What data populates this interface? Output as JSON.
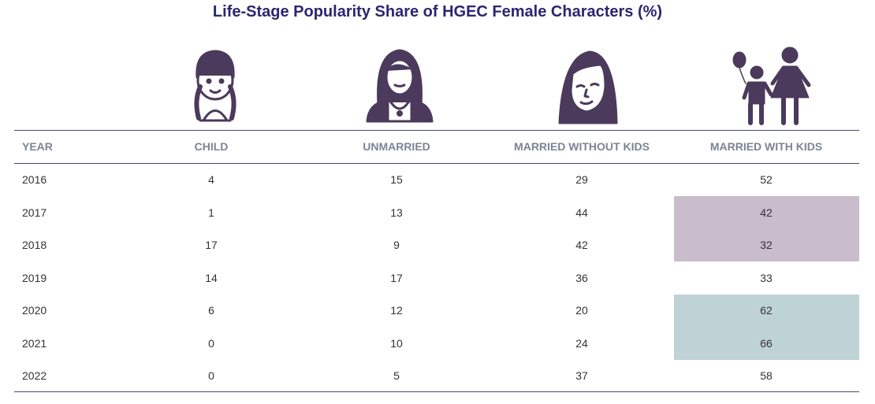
{
  "chart_data": {
    "type": "table",
    "title": "Life-Stage Popularity Share of HGEC Female Characters (%)",
    "columns": [
      "YEAR",
      "CHILD",
      "UNMARRIED",
      "MARRIED WITHOUT KIDS",
      "MARRIED WITH KIDS"
    ],
    "rows": [
      [
        "2016",
        "4",
        "15",
        "29",
        "52"
      ],
      [
        "2017",
        "1",
        "13",
        "44",
        "42"
      ],
      [
        "2018",
        "17",
        "9",
        "42",
        "32"
      ],
      [
        "2019",
        "14",
        "17",
        "36",
        "33"
      ],
      [
        "2020",
        "6",
        "12",
        "20",
        "62"
      ],
      [
        "2021",
        "0",
        "10",
        "24",
        "66"
      ],
      [
        "2022",
        "0",
        "5",
        "37",
        "58"
      ]
    ],
    "icons": [
      "child-girl-icon",
      "unmarried-woman-icon",
      "married-woman-icon",
      "mother-with-child-icon"
    ],
    "colors": {
      "title": "#2a2670",
      "icon": "#4b3a5c",
      "header_text": "#7b8494",
      "rule": "#4a4776",
      "highlight_purple": "#c8bccd",
      "highlight_teal": "#bfd3d6"
    },
    "highlights": [
      {
        "column": "MARRIED WITH KIDS",
        "years": [
          "2017",
          "2018"
        ],
        "color": "#c8bccd"
      },
      {
        "column": "MARRIED WITH KIDS",
        "years": [
          "2020",
          "2021"
        ],
        "color": "#bfd3d6"
      }
    ]
  }
}
